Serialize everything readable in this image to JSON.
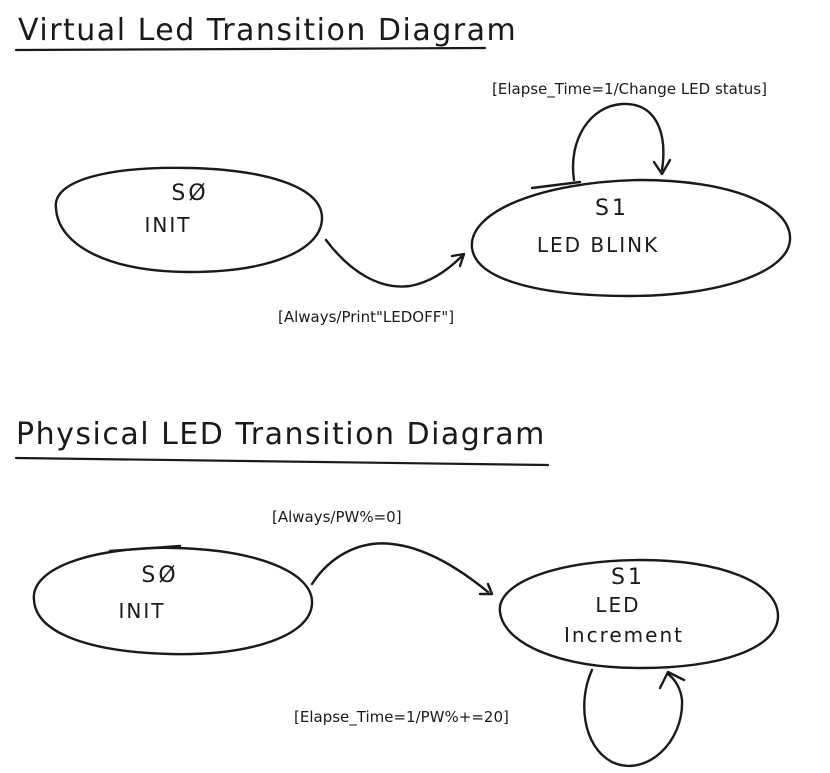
{
  "virtual": {
    "title": "Virtual Led Transition Diagram",
    "states": {
      "s0": {
        "id": "SØ",
        "name": "INIT"
      },
      "s1": {
        "id": "S1",
        "name": "LED BLINK"
      }
    },
    "edges": {
      "s0_to_s1": "[Always/Print\"LEDOFF\"]",
      "s1_self": "[Elapse_Time=1/Change LED status]"
    }
  },
  "physical": {
    "title": "Physical LED Transition Diagram",
    "states": {
      "s0": {
        "id": "SØ",
        "name": "INIT"
      },
      "s1": {
        "id": "S1",
        "name_line1": "LED",
        "name_line2": "Increment"
      }
    },
    "edges": {
      "s0_to_s1": "[Always/PW%=0]",
      "s1_self": "[Elapse_Time=1/PW%+=20]"
    }
  }
}
